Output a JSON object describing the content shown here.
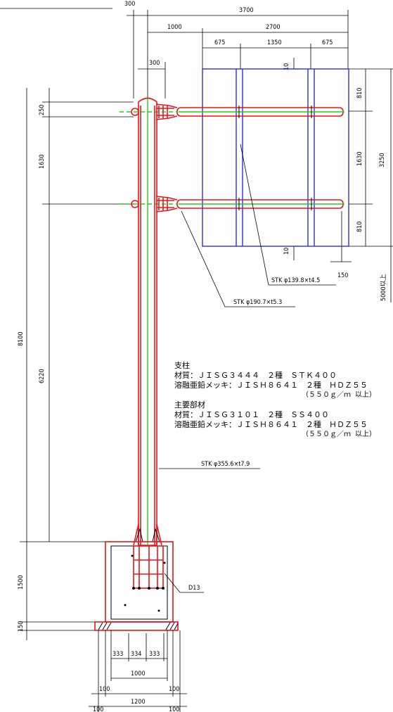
{
  "header_text": "",
  "dimensions": {
    "top_300": "300",
    "top_3700": "3700",
    "top_1000": "1000",
    "top_2700": "2700",
    "top_675a": "675",
    "top_1350": "1350",
    "top_675b": "675",
    "post_300": "300",
    "left_250": "250",
    "left_1630": "1630",
    "left_8100": "8100",
    "left_6220": "6220",
    "left_1500": "1500",
    "left_150": "150",
    "right_10a": "10",
    "right_810a": "810",
    "right_1630": "1630",
    "right_3250": "3250",
    "right_810b": "810",
    "right_10b": "10",
    "right_150": "150",
    "right_5000": "5000以上",
    "base_333a": "333",
    "base_334": "334",
    "base_333b": "333",
    "base_1000": "1000",
    "base_100a": "100",
    "base_100b": "100",
    "base_1200": "1200",
    "base_100c": "100",
    "base_100d": "100"
  },
  "labels": {
    "stk_small": "STK φ139.8×t4.5",
    "stk_mid": "STK φ190.7×t5.3",
    "stk_post": "STK φ355.6×t7.9",
    "d13": "D13"
  },
  "notes": {
    "pillar_title": "支柱",
    "pillar_material": "材質：ＪＩＳＧ３４４４　２種　ＳＴＫ４００",
    "pillar_plating": "溶融亜鉛メッキ：ＪＩＳＨ８６４１　２種　ＨＤＺ５５",
    "pillar_plating_amount": "（５５０ｇ／ｍ 以上）",
    "main_title": "主要部材",
    "main_material": "材質：ＪＩＳＧ３１０１　２種　ＳＳ４００",
    "main_plating": "溶融亜鉛メッキ：ＪＩＳＨ８６４１　２種　ＨＤＺ５５",
    "main_plating_amount": "（５５０ｇ／ｍ 以上）"
  },
  "colors": {
    "structure_red": "#e8141c",
    "centerline_green": "#1fd21a",
    "sign_blue": "#2d2fd8"
  }
}
